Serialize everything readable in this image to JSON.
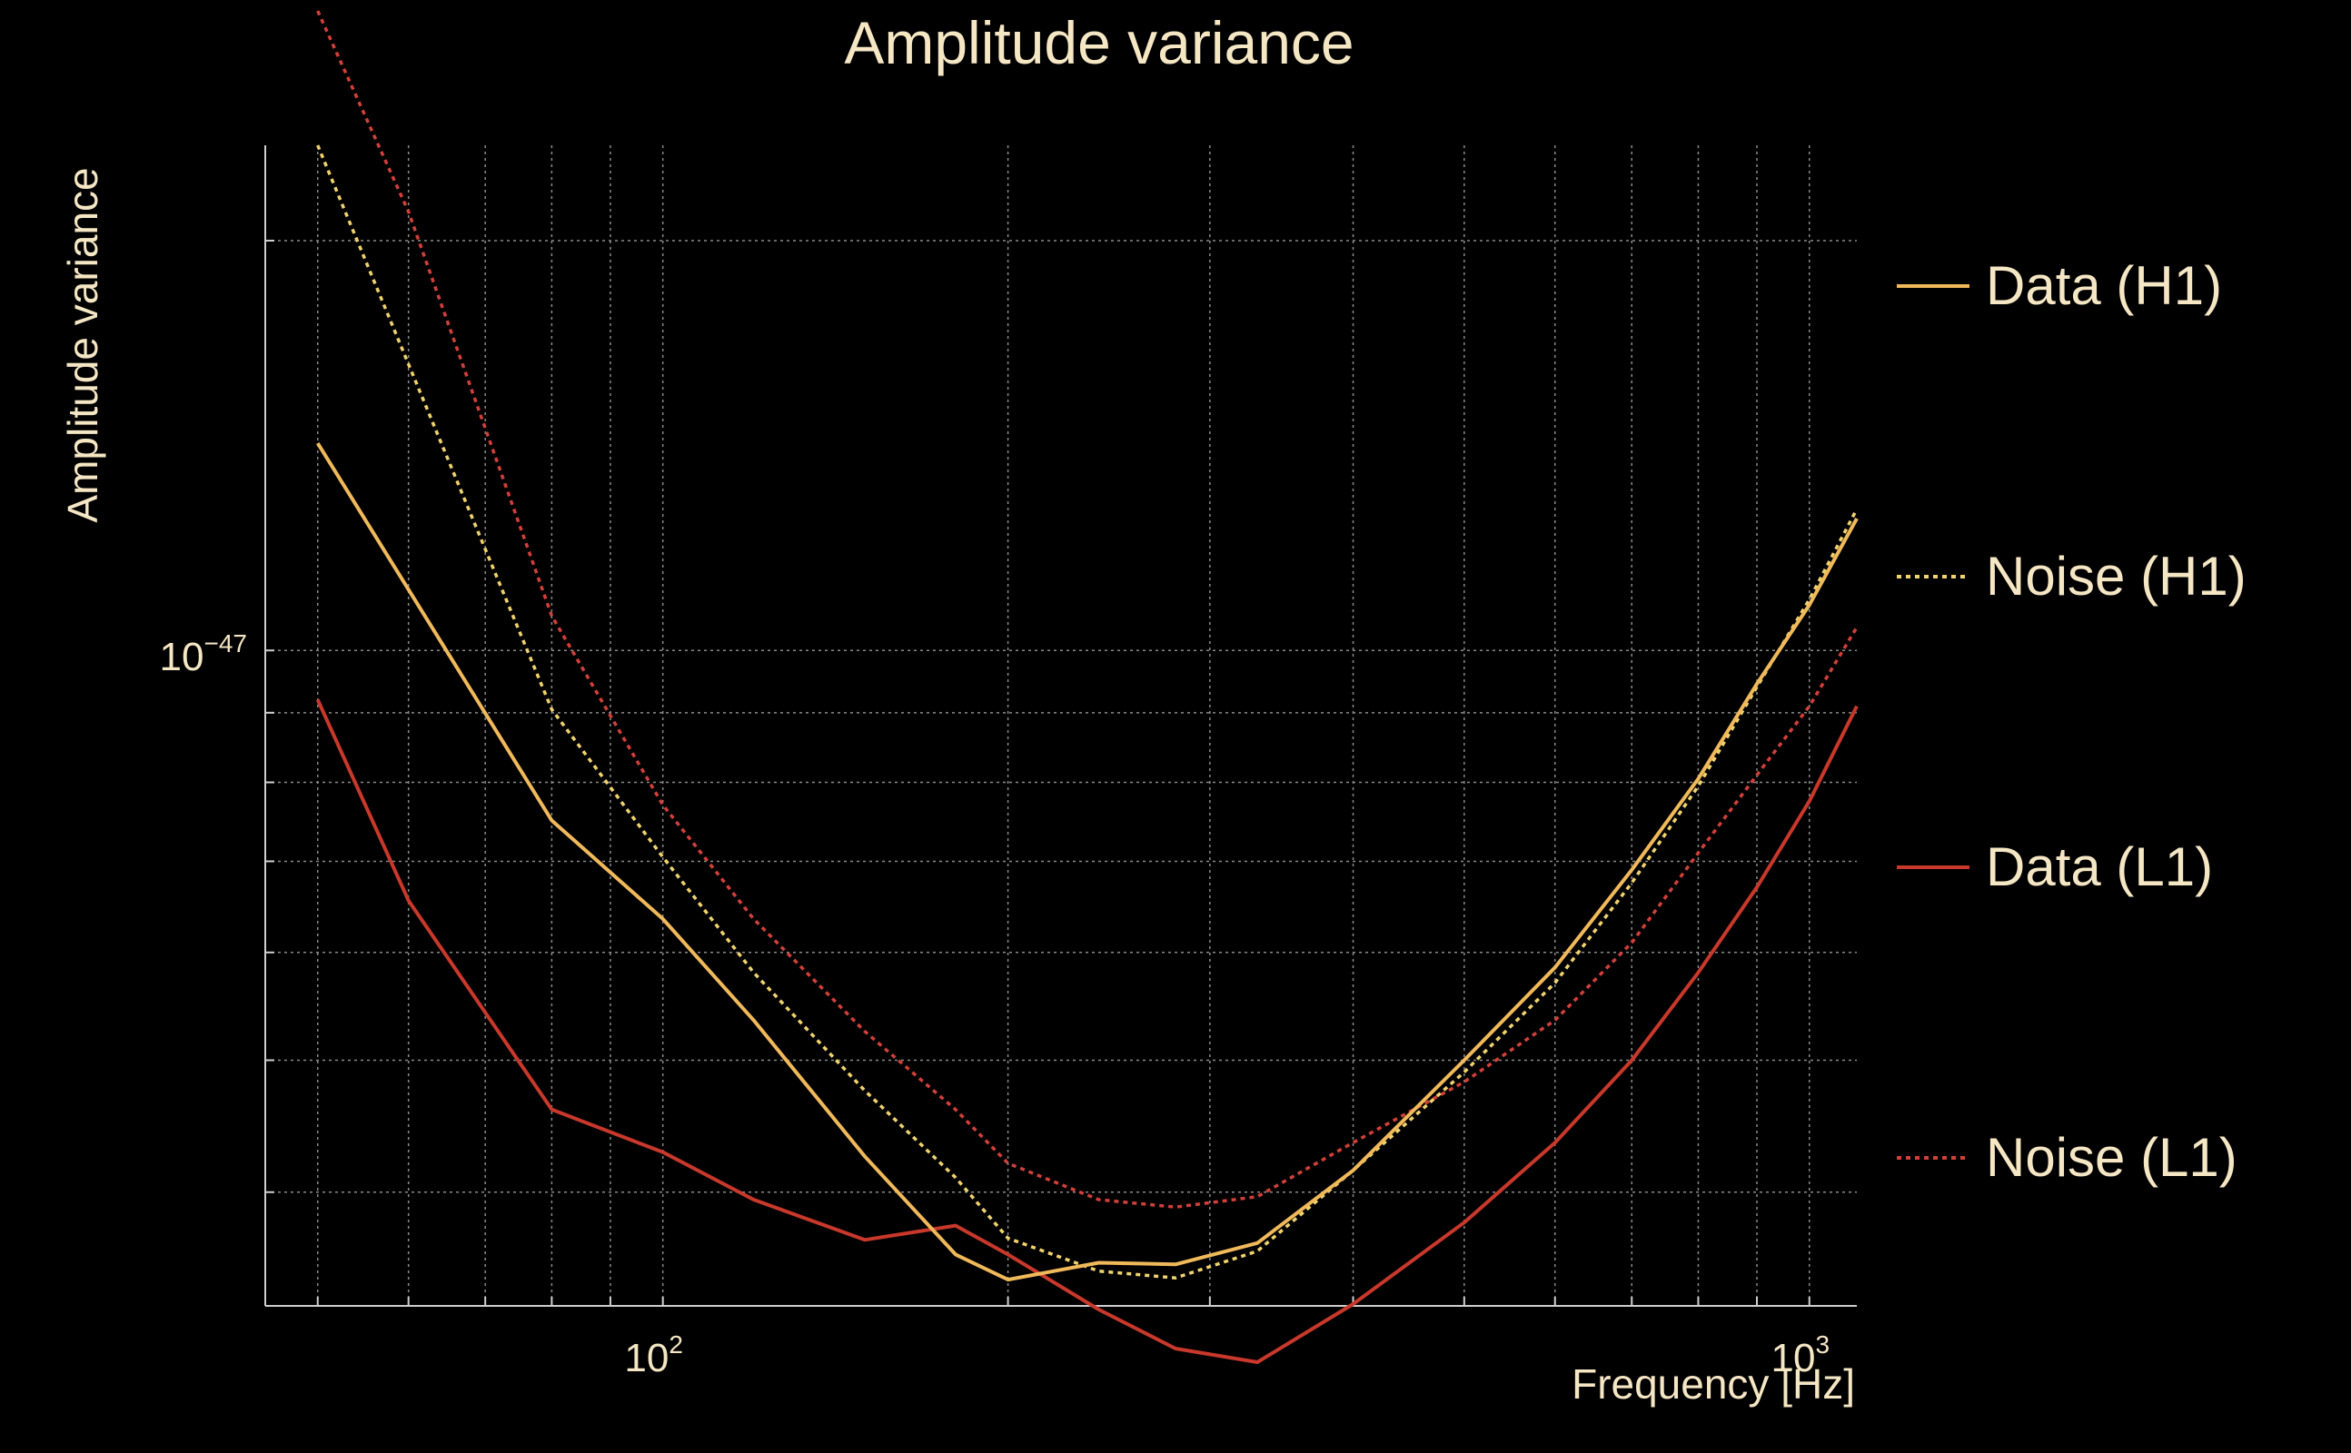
{
  "chart_data": {
    "type": "line",
    "title": "Amplitude variance",
    "xlabel": "Frequency [Hz]",
    "ylabel": "Amplitude variance",
    "xscale": "log",
    "yscale": "log",
    "xlim": [
      45,
      1100
    ],
    "ylim": [
      3.3e-48,
      2.35e-47
    ],
    "x_ticks": [
      {
        "value": 100,
        "base": "10",
        "exp": "2"
      },
      {
        "value": 1000,
        "base": "10",
        "exp": "3"
      }
    ],
    "y_ticks": [
      {
        "value": 1e-47,
        "base": "10",
        "exp": "−47"
      }
    ],
    "x_minor_ticks": [
      50,
      60,
      70,
      80,
      90,
      200,
      300,
      400,
      500,
      600,
      700,
      800,
      900
    ],
    "y_minor_ticks": [
      4e-48,
      5e-48,
      6e-48,
      7e-48,
      8e-48,
      9e-48,
      2e-47
    ],
    "grid": true,
    "legend_position": "right",
    "series": [
      {
        "name": "Data (H1)",
        "color": "#f0b95a",
        "style": "solid",
        "x": [
          50,
          80,
          100,
          120,
          150,
          180,
          200,
          240,
          280,
          330,
          400,
          500,
          600,
          700,
          800,
          900,
          1000,
          1100
        ],
        "y": [
          1.42e-47,
          7.5e-48,
          6.35e-48,
          5.35e-48,
          4.25e-48,
          3.6e-48,
          3.45e-48,
          3.55e-48,
          3.54e-48,
          3.67e-48,
          4.15e-48,
          5e-48,
          5.85e-48,
          6.9e-48,
          8.05e-48,
          9.45e-48,
          1.08e-47,
          1.25e-47
        ]
      },
      {
        "name": "Noise (H1)",
        "color": "#f0d36e",
        "style": "dotted",
        "x": [
          50,
          80,
          100,
          120,
          150,
          180,
          200,
          240,
          280,
          330,
          400,
          500,
          600,
          700,
          800,
          900,
          1000,
          1100
        ],
        "y": [
          2.35e-47,
          9.05e-48,
          7.05e-48,
          5.8e-48,
          4.75e-48,
          4.1e-48,
          3.7e-48,
          3.5e-48,
          3.46e-48,
          3.62e-48,
          4.15e-48,
          4.9e-48,
          5.7e-48,
          6.75e-48,
          7.95e-48,
          9.4e-48,
          1.09e-47,
          1.27e-47
        ]
      },
      {
        "name": "Data (L1)",
        "color": "#c8382b",
        "style": "solid",
        "x": [
          50,
          60,
          80,
          100,
          120,
          150,
          180,
          200,
          240,
          280,
          330,
          400,
          500,
          600,
          700,
          800,
          900,
          1000,
          1100
        ],
        "y": [
          9.2e-48,
          6.55e-48,
          4.6e-48,
          4.28e-48,
          3.95e-48,
          3.69e-48,
          3.78e-48,
          3.6e-48,
          3.28e-48,
          3.07e-48,
          3e-48,
          3.31e-48,
          3.8e-48,
          4.35e-48,
          5e-48,
          5.8e-48,
          6.7e-48,
          7.75e-48,
          9.1e-48
        ]
      },
      {
        "name": "Noise (L1)",
        "color": "#d1403a",
        "style": "dotted",
        "x": [
          50,
          60,
          80,
          100,
          120,
          150,
          180,
          200,
          240,
          280,
          330,
          400,
          500,
          600,
          700,
          800,
          900,
          1000,
          1100
        ],
        "y": [
          2.95e-47,
          2.1e-47,
          1.06e-47,
          7.7e-48,
          6.35e-48,
          5.25e-48,
          4.6e-48,
          4.2e-48,
          3.95e-48,
          3.9e-48,
          3.97e-48,
          4.35e-48,
          4.82e-48,
          5.35e-48,
          6.1e-48,
          7.1e-48,
          8.1e-48,
          9.1e-48,
          1.04e-47
        ]
      }
    ]
  }
}
